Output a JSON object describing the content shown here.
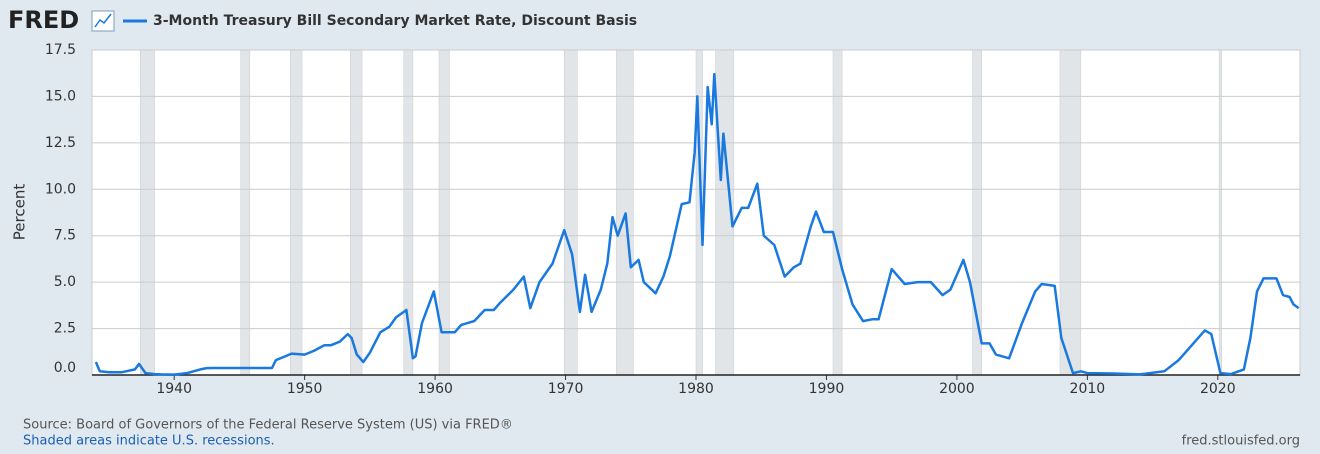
{
  "logo": "FRED",
  "chart_data": {
    "type": "line",
    "title": "3-Month Treasury Bill Secondary Market Rate, Discount Basis",
    "y_label": "Percent",
    "source": "Source: Board of Governors of the Federal Reserve System (US) via FRED®",
    "note": "Shaded areas indicate U.S. recessions.",
    "url": "fred.stlouisfed.org",
    "xlim": [
      1933.7,
      2026.3
    ],
    "xticks": [
      1940,
      1950,
      1960,
      1970,
      1980,
      1990,
      2000,
      2010,
      2020
    ],
    "ylim": [
      0,
      17.5
    ],
    "yticks": [
      {
        "value": 0,
        "label": "0.0"
      },
      2.5,
      {
        "value": 5,
        "label": "5.0"
      },
      7.5,
      {
        "value": 10,
        "label": "10.0"
      },
      12.5,
      {
        "value": 15,
        "label": "15.0"
      },
      17.5
    ],
    "grid": true,
    "recessions": [
      [
        1937.4,
        1938.5
      ],
      [
        1945.1,
        1945.8
      ],
      [
        1948.9,
        1949.8
      ],
      [
        1953.5,
        1954.4
      ],
      [
        1957.6,
        1958.3
      ],
      [
        1960.3,
        1961.1
      ],
      [
        1969.9,
        1970.9
      ],
      [
        1973.9,
        1975.2
      ],
      [
        1980.0,
        1980.5
      ],
      [
        1981.5,
        1982.9
      ],
      [
        1990.5,
        1991.2
      ],
      [
        2001.2,
        2001.9
      ],
      [
        2007.9,
        2009.5
      ],
      [
        2020.1,
        2020.3
      ]
    ],
    "recession_color": "#e1e5e8",
    "x": [
      1934,
      1934.3,
      1935,
      1936,
      1937,
      1937.3,
      1937.8,
      1938.5,
      1939,
      1940,
      1941,
      1942,
      1942.5,
      1943,
      1947.5,
      1947.8,
      1948.5,
      1949,
      1950,
      1950.7,
      1951.5,
      1952,
      1952.7,
      1953.3,
      1953.6,
      1954,
      1954.5,
      1955,
      1955.8,
      1956.5,
      1957,
      1957.8,
      1958.3,
      1958.5,
      1959,
      1959.9,
      1960.5,
      1961,
      1961.5,
      1962,
      1963,
      1963.8,
      1964.5,
      1965,
      1966,
      1966.8,
      1967.3,
      1968,
      1969,
      1969.9,
      1970.5,
      1971.1,
      1971.5,
      1972,
      1972.7,
      1973.2,
      1973.6,
      1974,
      1974.6,
      1975,
      1975.6,
      1976,
      1976.9,
      1977.5,
      1978,
      1978.9,
      1979.5,
      1979.9,
      1980.1,
      1980.5,
      1980.9,
      1981.2,
      1981.4,
      1981.9,
      1982.1,
      1982.8,
      1983.5,
      1984,
      1984.7,
      1985.2,
      1986,
      1986.8,
      1987.5,
      1988,
      1988.8,
      1989.2,
      1989.8,
      1990.5,
      1991.2,
      1992,
      1992.8,
      1993.5,
      1994,
      1995,
      1996,
      1997,
      1998,
      1998.9,
      1999.5,
      2000.5,
      2001,
      2001.9,
      2002.5,
      2003,
      2004,
      2005,
      2006,
      2006.5,
      2007.5,
      2008,
      2008.9,
      2009.5,
      2010,
      2012,
      2014,
      2015.9,
      2017,
      2018,
      2019,
      2019.5,
      2020.2,
      2021,
      2022,
      2022.5,
      2023,
      2023.5,
      2024.5,
      2025,
      2025.5,
      2025.8,
      2026.2
    ],
    "series": [
      {
        "name": "3-Month Treasury Bill Secondary Market Rate, Discount Basis",
        "color": "#1979df",
        "values": [
          0.7,
          0.2,
          0.15,
          0.15,
          0.3,
          0.6,
          0.1,
          0.05,
          0.03,
          0.02,
          0.1,
          0.3,
          0.37,
          0.375,
          0.375,
          0.8,
          1.0,
          1.15,
          1.1,
          1.3,
          1.6,
          1.6,
          1.8,
          2.2,
          2.0,
          1.1,
          0.7,
          1.2,
          2.3,
          2.6,
          3.1,
          3.5,
          0.9,
          1.0,
          2.8,
          4.5,
          2.3,
          2.3,
          2.3,
          2.7,
          2.9,
          3.5,
          3.5,
          3.9,
          4.6,
          5.3,
          3.6,
          5.0,
          6.0,
          7.8,
          6.5,
          3.4,
          5.4,
          3.4,
          4.6,
          6.0,
          8.5,
          7.5,
          8.7,
          5.8,
          6.2,
          5.0,
          4.4,
          5.3,
          6.4,
          9.2,
          9.3,
          12.0,
          15.0,
          7.0,
          15.5,
          13.5,
          16.2,
          10.5,
          13.0,
          8.0,
          9.0,
          9.0,
          10.3,
          7.5,
          7.0,
          5.3,
          5.8,
          6.0,
          8.0,
          8.8,
          7.7,
          7.7,
          5.7,
          3.8,
          2.9,
          3.0,
          3.0,
          5.7,
          4.9,
          5.0,
          5.0,
          4.3,
          4.6,
          6.2,
          5.0,
          1.7,
          1.7,
          1.1,
          0.9,
          2.8,
          4.5,
          4.9,
          4.8,
          2.0,
          0.1,
          0.2,
          0.1,
          0.08,
          0.03,
          0.2,
          0.8,
          1.6,
          2.4,
          2.2,
          0.1,
          0.05,
          0.3,
          2.0,
          4.5,
          5.2,
          5.2,
          4.3,
          4.2,
          3.8,
          3.6
        ]
      }
    ]
  }
}
